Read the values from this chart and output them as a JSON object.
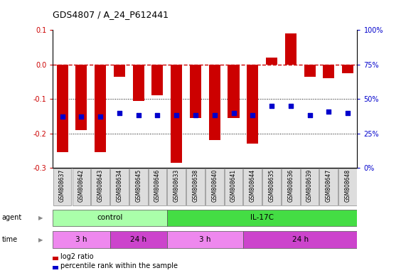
{
  "title": "GDS4807 / A_24_P612441",
  "samples": [
    "GSM808637",
    "GSM808642",
    "GSM808643",
    "GSM808634",
    "GSM808645",
    "GSM808646",
    "GSM808633",
    "GSM808638",
    "GSM808640",
    "GSM808641",
    "GSM808644",
    "GSM808635",
    "GSM808636",
    "GSM808639",
    "GSM808647",
    "GSM808648"
  ],
  "log2_ratio": [
    -0.255,
    -0.19,
    -0.255,
    -0.035,
    -0.105,
    -0.09,
    -0.285,
    -0.155,
    -0.22,
    -0.155,
    -0.23,
    0.02,
    0.09,
    -0.035,
    -0.04,
    -0.025
  ],
  "percentile_right": [
    37,
    37,
    37,
    40,
    38,
    38,
    38,
    38,
    38,
    40,
    38,
    45,
    45,
    38,
    41,
    40
  ],
  "bar_color": "#cc0000",
  "dot_color": "#0000cc",
  "ylim": [
    -0.3,
    0.1
  ],
  "yticks_left": [
    0.1,
    0.0,
    -0.1,
    -0.2,
    -0.3
  ],
  "yticks_right": [
    100,
    75,
    50,
    25,
    0
  ],
  "agent_groups": [
    {
      "label": "control",
      "start": 0,
      "end": 6,
      "color": "#aaffaa"
    },
    {
      "label": "IL-17C",
      "start": 6,
      "end": 16,
      "color": "#44dd44"
    }
  ],
  "time_groups": [
    {
      "label": "3 h",
      "start": 0,
      "end": 3,
      "color": "#ee88ee"
    },
    {
      "label": "24 h",
      "start": 3,
      "end": 6,
      "color": "#cc44cc"
    },
    {
      "label": "3 h",
      "start": 6,
      "end": 10,
      "color": "#ee88ee"
    },
    {
      "label": "24 h",
      "start": 10,
      "end": 16,
      "color": "#cc44cc"
    }
  ],
  "legend_items": [
    {
      "color": "#cc0000",
      "label": "log2 ratio"
    },
    {
      "color": "#0000cc",
      "label": "percentile rank within the sample"
    }
  ]
}
